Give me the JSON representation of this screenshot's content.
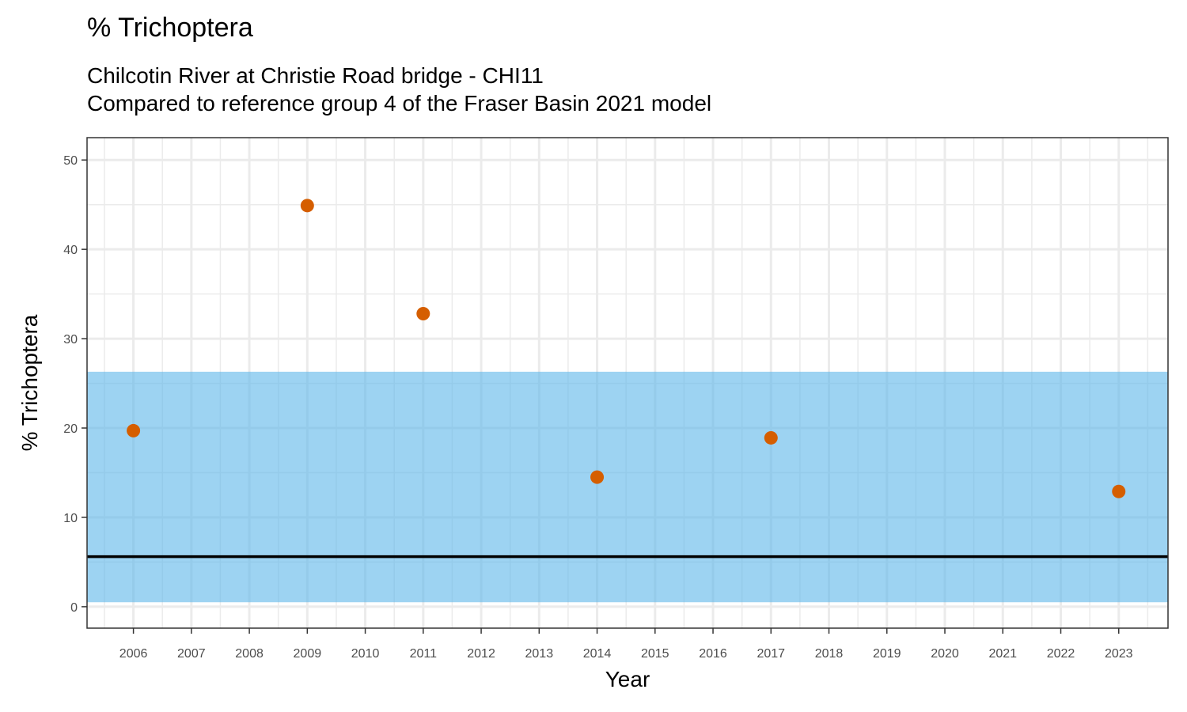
{
  "chart_data": {
    "type": "scatter",
    "title": "% Trichoptera",
    "subtitle_line1": "Chilcotin River at Christie Road bridge - CHI11",
    "subtitle_line2": "Compared to reference group 4 of the Fraser Basin 2021 model",
    "xlabel": "Year",
    "ylabel": "% Trichoptera",
    "xlim": [
      2005.2,
      2023.85
    ],
    "ylim": [
      -2.4,
      52.5
    ],
    "x_ticks": [
      "2006",
      "2007",
      "2008",
      "2009",
      "2010",
      "2011",
      "2012",
      "2013",
      "2014",
      "2015",
      "2016",
      "2017",
      "2018",
      "2019",
      "2020",
      "2021",
      "2022",
      "2023"
    ],
    "y_ticks": [
      "0",
      "10",
      "20",
      "30",
      "40",
      "50"
    ],
    "points": [
      {
        "x": 2006,
        "y": 19.7
      },
      {
        "x": 2009,
        "y": 44.9
      },
      {
        "x": 2011,
        "y": 32.8
      },
      {
        "x": 2014,
        "y": 14.5
      },
      {
        "x": 2017,
        "y": 18.9
      },
      {
        "x": 2023,
        "y": 12.9
      }
    ],
    "reference_band": {
      "lower": 0.5,
      "upper": 26.3
    },
    "reference_line": 5.6,
    "colors": {
      "points": "#D55E00",
      "band": "#56B4E9",
      "line": "#000000",
      "grid": "#EBEBEB",
      "border": "#333333"
    }
  }
}
